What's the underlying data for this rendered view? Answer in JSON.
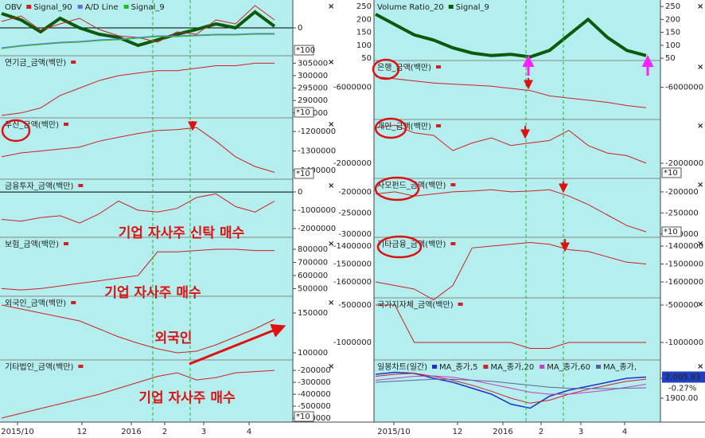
{
  "chart_data": [
    {
      "type": "line",
      "title": "OBV",
      "ylim": [
        -35,
        35
      ],
      "yticks": [
        0
      ],
      "scale": "*100",
      "series": [
        {
          "name": "OBV",
          "color": "#0a5a0a",
          "width": 4,
          "values": [
            18,
            10,
            -5,
            12,
            0,
            -8,
            -12,
            -22,
            -15,
            -8,
            -2,
            5,
            0,
            20,
            2
          ]
        },
        {
          "name": "Signal_90",
          "color": "#d02020",
          "width": 1,
          "values": [
            8,
            15,
            -3,
            5,
            12,
            -2,
            -10,
            -12,
            -18,
            -5,
            -8,
            10,
            5,
            28,
            10
          ]
        },
        {
          "name": "A/D Line",
          "color": "#6a6adf",
          "width": 1,
          "values": [
            -25,
            -22,
            -20,
            -18,
            -17,
            -15,
            -14,
            -12,
            -10,
            -10,
            -9,
            -8,
            -8,
            -7,
            -7
          ]
        },
        {
          "name": "Signal_9",
          "color": "#20c020",
          "width": 1,
          "values": [
            -26,
            -23,
            -21,
            -19,
            -18,
            -16,
            -15,
            -13,
            -11,
            -11,
            -10,
            -9,
            -9,
            -8,
            -8
          ]
        }
      ]
    },
    {
      "type": "line",
      "title": "연기금_금액(백만)",
      "ylim": [
        283000,
        308000
      ],
      "yticks": [
        305000,
        300000,
        295000,
        290000,
        285000
      ],
      "scale": "*10",
      "color": "#d02020",
      "values": [
        284000,
        285000,
        287000,
        292000,
        295000,
        298000,
        300000,
        301000,
        302000,
        302000,
        303000,
        304000,
        304000,
        305000,
        305000
      ]
    },
    {
      "type": "line",
      "title": "투신_금액(백만)",
      "ylim": [
        -1445000,
        -1130000
      ],
      "yticks": [
        -1200000,
        -1300000,
        -1400000
      ],
      "scale": "*10",
      "color": "#d02020",
      "values": [
        -1330000,
        -1310000,
        -1300000,
        -1290000,
        -1280000,
        -1250000,
        -1230000,
        -1210000,
        -1195000,
        -1190000,
        -1180000,
        -1250000,
        -1330000,
        -1380000,
        -1410000
      ]
    },
    {
      "type": "line",
      "title": "금융투자_금액(백만)",
      "ylim": [
        -2480000,
        700000
      ],
      "yticks": [
        0,
        -1000000,
        -2000000
      ],
      "color": "#d02020",
      "values": [
        -1500000,
        -1600000,
        -1400000,
        -1300000,
        -1700000,
        -1200000,
        -500000,
        -1000000,
        -1100000,
        -900000,
        -300000,
        -100000,
        -800000,
        -1100000,
        -500000
      ]
    },
    {
      "type": "line",
      "title": "보험_금액(백만)",
      "ylim": [
        442000,
        891000
      ],
      "yticks": [
        800000,
        700000,
        600000,
        500000
      ],
      "color": "#d02020",
      "values": [
        500000,
        490000,
        500000,
        520000,
        540000,
        560000,
        580000,
        600000,
        780000,
        780000,
        790000,
        800000,
        800000,
        790000,
        790000
      ]
    },
    {
      "type": "line",
      "title": "외국인_금액(백만)",
      "ylim": [
        91000,
        171000
      ],
      "yticks": [
        150000,
        100000
      ],
      "color": "#d02020",
      "values": [
        160000,
        155000,
        150000,
        145000,
        140000,
        130000,
        120000,
        112000,
        105000,
        100000,
        102000,
        110000,
        120000,
        130000,
        142000
      ]
    },
    {
      "type": "line",
      "title": "기타법인_금액(백만)",
      "ylim": [
        -633000,
        -113000
      ],
      "yticks": [
        -200000,
        -300000,
        -400000,
        -500000,
        -600000
      ],
      "scale": "*10",
      "color": "#d02020",
      "values": [
        -600000,
        -560000,
        -520000,
        -480000,
        -440000,
        -400000,
        -350000,
        -300000,
        -250000,
        -220000,
        -280000,
        -260000,
        -220000,
        -210000,
        -200000
      ]
    },
    {
      "type": "line",
      "title": "Volume Ratio_20",
      "ylim": [
        41,
        275
      ],
      "yticks": [
        250,
        200,
        150,
        100,
        50
      ],
      "series": [
        {
          "name": "Signal_9",
          "color": "#0a5a0a",
          "width": 4,
          "values": [
            220,
            180,
            140,
            120,
            90,
            70,
            60,
            65,
            55,
            80,
            140,
            200,
            130,
            80,
            60
          ]
        }
      ]
    },
    {
      "type": "line",
      "title": "은행_금액(백만)",
      "ylim": [
        -9000000,
        -3500000
      ],
      "yticks": [
        -6000000
      ],
      "color": "#d02020",
      "values": [
        -5000000,
        -5200000,
        -5400000,
        -5600000,
        -5700000,
        -5800000,
        -5900000,
        -6100000,
        -6300000,
        -6800000,
        -7000000,
        -7200000,
        -7400000,
        -7700000,
        -7900000
      ]
    },
    {
      "type": "line",
      "title": "개인_금액(백만)",
      "ylim": [
        -2600000,
        -270000
      ],
      "yticks": [
        -2000000
      ],
      "scale": "*10",
      "color": "#d02020",
      "values": [
        -600000,
        -500000,
        -800000,
        -900000,
        -1500000,
        -1200000,
        -1000000,
        -1300000,
        -1200000,
        -1100000,
        -700000,
        -1300000,
        -1600000,
        -1700000,
        -2000000
      ]
    },
    {
      "type": "line",
      "title": "사모펀드_금액(백만)",
      "ylim": [
        -308000,
        -168000
      ],
      "yticks": [
        -200000,
        -250000,
        -300000
      ],
      "scale": "*10",
      "color": "#d02020",
      "values": [
        -205000,
        -200000,
        -210000,
        -205000,
        -200000,
        -198000,
        -195000,
        -200000,
        -198000,
        -195000,
        -210000,
        -230000,
        -255000,
        -280000,
        -295000
      ]
    },
    {
      "type": "line",
      "title": "기타금융_금액(백만)",
      "ylim": [
        -1689000,
        -1351000
      ],
      "yticks": [
        -1400000,
        -1500000,
        -1600000
      ],
      "color": "#d02020",
      "values": [
        -1600000,
        -1620000,
        -1640000,
        -1700000,
        -1620000,
        -1410000,
        -1400000,
        -1390000,
        -1380000,
        -1390000,
        -1420000,
        -1430000,
        -1460000,
        -1490000,
        -1500000
      ]
    },
    {
      "type": "line",
      "title": "국가지자체_금액(백만)",
      "ylim": [
        -1234000,
        -404000
      ],
      "yticks": [
        -500000,
        -1000000
      ],
      "color": "#d02020",
      "values": [
        -500000,
        -500000,
        -1000000,
        -1000000,
        -1000000,
        -1000000,
        -1000000,
        -1000000,
        -1080000,
        -1080000,
        -1000000,
        -1000000,
        -1000000,
        -1000000,
        -1000000
      ]
    },
    {
      "type": "line",
      "title": "일봉차트(일간)",
      "ylim": [
        1780,
        2092
      ],
      "yticks": [
        {
          "value": 2000,
          "label": "2000.00"
        },
        {
          "value": 1900,
          "label": "1900.00"
        }
      ],
      "price_label": "2,005.83",
      "change_label": "-0.27%",
      "series": [
        {
          "name": "MA_종가,5",
          "color": "#2030d0",
          "width": 1.5,
          "values": [
            2020,
            2030,
            2025,
            2000,
            1980,
            1950,
            1920,
            1870,
            1850,
            1910,
            1940,
            1960,
            1980,
            2000,
            2006
          ]
        },
        {
          "name": "MA_종가,20",
          "color": "#d02020",
          "width": 1,
          "values": [
            2010,
            2020,
            2025,
            2010,
            1990,
            1965,
            1935,
            1900,
            1875,
            1890,
            1920,
            1945,
            1965,
            1985,
            1995
          ]
        },
        {
          "name": "MA_종가,60",
          "color": "#c040c0",
          "width": 1,
          "values": [
            1990,
            2000,
            2010,
            2012,
            2005,
            1990,
            1970,
            1950,
            1930,
            1920,
            1920,
            1930,
            1940,
            1955,
            1970
          ]
        },
        {
          "name": "MA_종가,",
          "color": "#6060a0",
          "width": 1,
          "values": [
            1980,
            1985,
            1990,
            1995,
            1995,
            1990,
            1985,
            1975,
            1965,
            1955,
            1950,
            1948,
            1948,
            1950,
            1952
          ]
        }
      ]
    }
  ],
  "x_axis": {
    "left": [
      "2015/10",
      "12",
      "2016",
      "2",
      "3",
      "4"
    ],
    "right": [
      "2015/10",
      "12",
      "2016",
      "2",
      "3",
      "4"
    ]
  },
  "annotations": [
    "기업 자사주 신탁 매수",
    "기업 자사주 매수",
    "외국인",
    "기업 자사주 매수"
  ]
}
